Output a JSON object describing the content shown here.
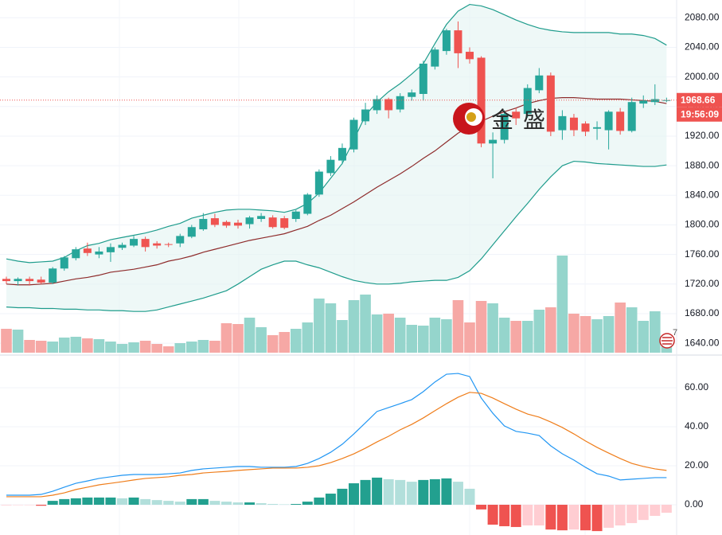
{
  "chart_data": {
    "type": "candlestick",
    "open": [
      1727,
      1724,
      1727,
      1726,
      1722,
      1741,
      1755,
      1768,
      1760,
      1763,
      1769,
      1772,
      1781,
      1775,
      1774,
      1775,
      1784,
      1794,
      1809,
      1804,
      1803,
      1801,
      1808,
      1810,
      1809,
      1808,
      1815,
      1841,
      1870,
      1887,
      1902,
      1940,
      1955,
      1970,
      1956,
      1973,
      1977,
      2014,
      2035,
      2063,
      2034,
      2026,
      1910,
      1915,
      1953,
      1950,
      1982,
      2002,
      1928,
      1945,
      1937,
      1930,
      1928,
      1953,
      1927,
      1964,
      1966,
      1968
    ],
    "high": [
      1730,
      1729,
      1730,
      1730,
      1743,
      1758,
      1770,
      1776,
      1770,
      1775,
      1776,
      1785,
      1784,
      1778,
      1776,
      1788,
      1800,
      1816,
      1815,
      1806,
      1807,
      1812,
      1816,
      1813,
      1812,
      1820,
      1843,
      1875,
      1893,
      1910,
      1945,
      1965,
      1975,
      1972,
      1978,
      1983,
      2022,
      2040,
      2065,
      2075,
      2040,
      2028,
      1925,
      1955,
      1958,
      1990,
      2012,
      2006,
      1955,
      1950,
      1940,
      1940,
      1955,
      1958,
      1972,
      1975,
      1990,
      1972
    ],
    "low": [
      1720,
      1718,
      1718,
      1720,
      1720,
      1738,
      1752,
      1758,
      1755,
      1750,
      1766,
      1770,
      1764,
      1768,
      1770,
      1770,
      1782,
      1792,
      1797,
      1796,
      1795,
      1795,
      1804,
      1795,
      1794,
      1804,
      1813,
      1838,
      1866,
      1882,
      1898,
      1935,
      1950,
      1944,
      1952,
      1968,
      1968,
      2010,
      2030,
      2012,
      2018,
      1905,
      1863,
      1910,
      1935,
      1945,
      1978,
      1920,
      1915,
      1920,
      1920,
      1915,
      1902,
      1922,
      1925,
      1958,
      1962,
      1966
    ],
    "close": [
      1724,
      1727,
      1724,
      1722,
      1741,
      1756,
      1767,
      1762,
      1764,
      1770,
      1773,
      1781,
      1770,
      1772,
      1773,
      1785,
      1797,
      1808,
      1800,
      1799,
      1799,
      1810,
      1812,
      1797,
      1796,
      1818,
      1841,
      1872,
      1888,
      1904,
      1942,
      1956,
      1970,
      1955,
      1974,
      1979,
      2018,
      2037,
      2063,
      2032,
      2024,
      1910,
      1915,
      1950,
      1944,
      1985,
      2002,
      1926,
      1947,
      1928,
      1926,
      1932,
      1953,
      1927,
      1966,
      1968,
      1970,
      1968.66
    ],
    "up_color": "#26a69a",
    "down_color": "#ef5350",
    "ylim": [
      1624,
      2104
    ],
    "yticks": [
      {
        "value": 2080,
        "label": "2080.00"
      },
      {
        "value": 2040,
        "label": "2040.00"
      },
      {
        "value": 2000,
        "label": "2000.00"
      },
      {
        "value": 1960,
        "label": "1960.00"
      },
      {
        "value": 1920,
        "label": "1920.00"
      },
      {
        "value": 1880,
        "label": "1880.00"
      },
      {
        "value": 1840,
        "label": "1840.00"
      },
      {
        "value": 1800,
        "label": "1800.00"
      },
      {
        "value": 1760,
        "label": "1760.00"
      },
      {
        "value": 1720,
        "label": "1720.00"
      },
      {
        "value": 1680,
        "label": "1680.00"
      },
      {
        "value": 1640,
        "label": "1640.00"
      }
    ],
    "grid": true,
    "current_price": 1968.66,
    "countdown": "19:56:09",
    "watermark": "金盛",
    "badge": "7",
    "bollinger": {
      "upper": [
        1754,
        1751,
        1749,
        1750,
        1751,
        1756,
        1765,
        1772,
        1775,
        1780,
        1783,
        1786,
        1789,
        1793,
        1798,
        1802,
        1809,
        1813,
        1817,
        1820,
        1821,
        1821,
        1820,
        1819,
        1817,
        1821,
        1829,
        1843,
        1863,
        1883,
        1915,
        1948,
        1966,
        1980,
        1991,
        2004,
        2018,
        2045,
        2071,
        2089,
        2098,
        2096,
        2091,
        2084,
        2077,
        2071,
        2066,
        2063,
        2061,
        2060,
        2060,
        2060,
        2060,
        2058,
        2058,
        2056,
        2052,
        2043
      ],
      "middle": [
        1720,
        1719,
        1719,
        1720,
        1721,
        1724,
        1727,
        1729,
        1732,
        1736,
        1738,
        1740,
        1743,
        1746,
        1751,
        1754,
        1758,
        1763,
        1767,
        1771,
        1775,
        1779,
        1782,
        1785,
        1788,
        1793,
        1798,
        1806,
        1813,
        1822,
        1831,
        1841,
        1851,
        1860,
        1869,
        1879,
        1890,
        1900,
        1912,
        1924,
        1933,
        1940,
        1947,
        1953,
        1958,
        1964,
        1968,
        1971,
        1972,
        1972,
        1971,
        1970,
        1970,
        1970,
        1969,
        1968,
        1967,
        1964
      ],
      "lower": [
        1689,
        1688,
        1688,
        1687,
        1687,
        1686,
        1686,
        1685,
        1685,
        1684,
        1684,
        1683,
        1683,
        1685,
        1689,
        1693,
        1697,
        1701,
        1706,
        1711,
        1720,
        1730,
        1740,
        1746,
        1751,
        1751,
        1746,
        1742,
        1736,
        1730,
        1725,
        1722,
        1720,
        1720,
        1721,
        1723,
        1724,
        1725,
        1725,
        1729,
        1738,
        1754,
        1773,
        1792,
        1811,
        1829,
        1848,
        1865,
        1880,
        1886,
        1885,
        1883,
        1882,
        1881,
        1880,
        1879,
        1879,
        1881
      ],
      "band_color": "#1e9c8c",
      "middle_color": "#8e2b2b",
      "fill_color": "#e3f3f1"
    },
    "volume": {
      "values": [
        30,
        29,
        16,
        15,
        14,
        19,
        20,
        18,
        17,
        14,
        11,
        13,
        15,
        11,
        8,
        12,
        14,
        16,
        15,
        37,
        36,
        44,
        32,
        22,
        26,
        30,
        38,
        68,
        62,
        41,
        66,
        73,
        48,
        49,
        44,
        35,
        34,
        44,
        42,
        66,
        38,
        65,
        62,
        44,
        40,
        40,
        54,
        57,
        122,
        49,
        46,
        42,
        46,
        63,
        57,
        40,
        52,
        20
      ],
      "up_color": "#95d5cc",
      "down_color": "#f6a8a5"
    },
    "macd": {
      "ylim": [
        -15.5,
        76.3
      ],
      "yticks": [
        {
          "value": 60,
          "label": "60.00"
        },
        {
          "value": 40,
          "label": "40.00"
        },
        {
          "value": 20,
          "label": "20.00"
        },
        {
          "value": 0,
          "label": "0.00"
        }
      ],
      "dif": {
        "color": "#2196f3",
        "values": [
          4.9,
          4.9,
          4.9,
          5.3,
          6.9,
          9.0,
          11.0,
          12.2,
          13.5,
          14.3,
          15.1,
          15.5,
          15.5,
          15.5,
          15.9,
          16.3,
          17.6,
          18.4,
          18.8,
          19.2,
          19.6,
          19.6,
          19.2,
          19.2,
          19.2,
          19.6,
          21.2,
          23.7,
          26.9,
          31.0,
          36.3,
          42.0,
          47.8,
          49.8,
          51.8,
          53.9,
          58.0,
          62.9,
          66.9,
          67.3,
          65.7,
          54.7,
          46.9,
          40.4,
          37.6,
          36.7,
          35.5,
          30.2,
          26.1,
          22.9,
          19.2,
          15.9,
          14.7,
          12.7,
          13.1,
          13.5,
          13.9,
          13.9
        ]
      },
      "dea": {
        "color": "#ef7d1a",
        "values": [
          4.1,
          4.1,
          4.1,
          4.1,
          4.9,
          6.1,
          7.8,
          9.0,
          10.2,
          11.0,
          11.8,
          12.7,
          13.5,
          13.9,
          14.3,
          15.1,
          15.5,
          16.3,
          16.7,
          17.1,
          17.6,
          18.0,
          18.4,
          18.8,
          18.8,
          18.8,
          19.2,
          20.0,
          21.6,
          23.7,
          26.1,
          29.0,
          32.2,
          35.1,
          38.4,
          41.2,
          44.5,
          48.2,
          51.8,
          55.1,
          57.6,
          57.1,
          54.7,
          51.8,
          49.0,
          46.5,
          44.9,
          42.4,
          39.6,
          36.3,
          32.7,
          29.4,
          26.5,
          23.7,
          21.2,
          19.6,
          18.4,
          17.6
        ]
      },
      "histogram": {
        "values": [
          -0.3,
          -0.2,
          -0.2,
          -0.5,
          2.0,
          2.9,
          3.3,
          3.7,
          3.7,
          3.7,
          3.3,
          3.7,
          2.9,
          2.4,
          2.0,
          1.6,
          2.9,
          2.9,
          2.0,
          1.6,
          1.2,
          1.2,
          0.8,
          0.4,
          0.2,
          0.4,
          1.6,
          3.7,
          5.7,
          8.2,
          11.0,
          12.7,
          13.9,
          13.1,
          12.7,
          11.8,
          12.7,
          13.1,
          13.5,
          11.8,
          8.2,
          -2.4,
          -10.2,
          -11.0,
          -11.4,
          -10.6,
          -10.6,
          -12.7,
          -13.1,
          -12.7,
          -13.1,
          -13.5,
          -11.8,
          -10.6,
          -9.4,
          -7.8,
          -5.7,
          -4.1
        ],
        "rising_positive_color": "#22a08f",
        "falling_positive_color": "#b2dfdb",
        "falling_negative_color": "#ef5350",
        "rising_negative_color": "#ffcdd2"
      }
    }
  }
}
